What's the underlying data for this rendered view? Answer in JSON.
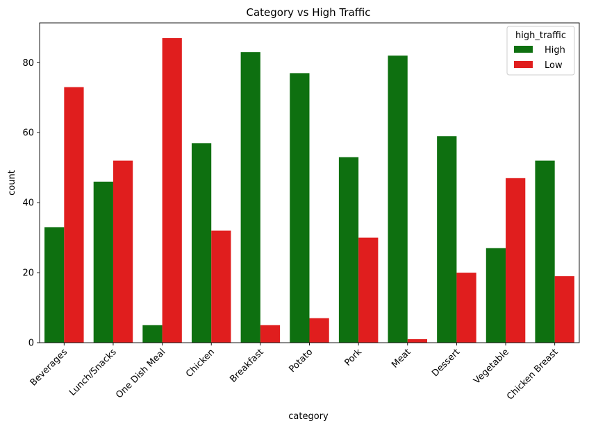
{
  "chart_data": {
    "type": "bar",
    "title": "Category vs High Traffic",
    "xlabel": "category",
    "ylabel": "count",
    "categories": [
      "Beverages",
      "Lunch/Snacks",
      "One Dish Meal",
      "Chicken",
      "Breakfast",
      "Potato",
      "Pork",
      "Meat",
      "Dessert",
      "Vegetable",
      "Chicken Breast"
    ],
    "series": [
      {
        "name": "High",
        "color": "#0e7010",
        "values": [
          33,
          46,
          5,
          57,
          83,
          77,
          53,
          82,
          59,
          27,
          52
        ]
      },
      {
        "name": "Low",
        "color": "#e01e1e",
        "values": [
          73,
          52,
          87,
          32,
          5,
          7,
          30,
          1,
          20,
          47,
          19
        ]
      }
    ],
    "ylim": [
      0,
      91.35
    ],
    "yticks": [
      0,
      20,
      40,
      60,
      80
    ],
    "legend": {
      "title": "high_traffic",
      "placement": "top-right"
    },
    "grid": false
  }
}
